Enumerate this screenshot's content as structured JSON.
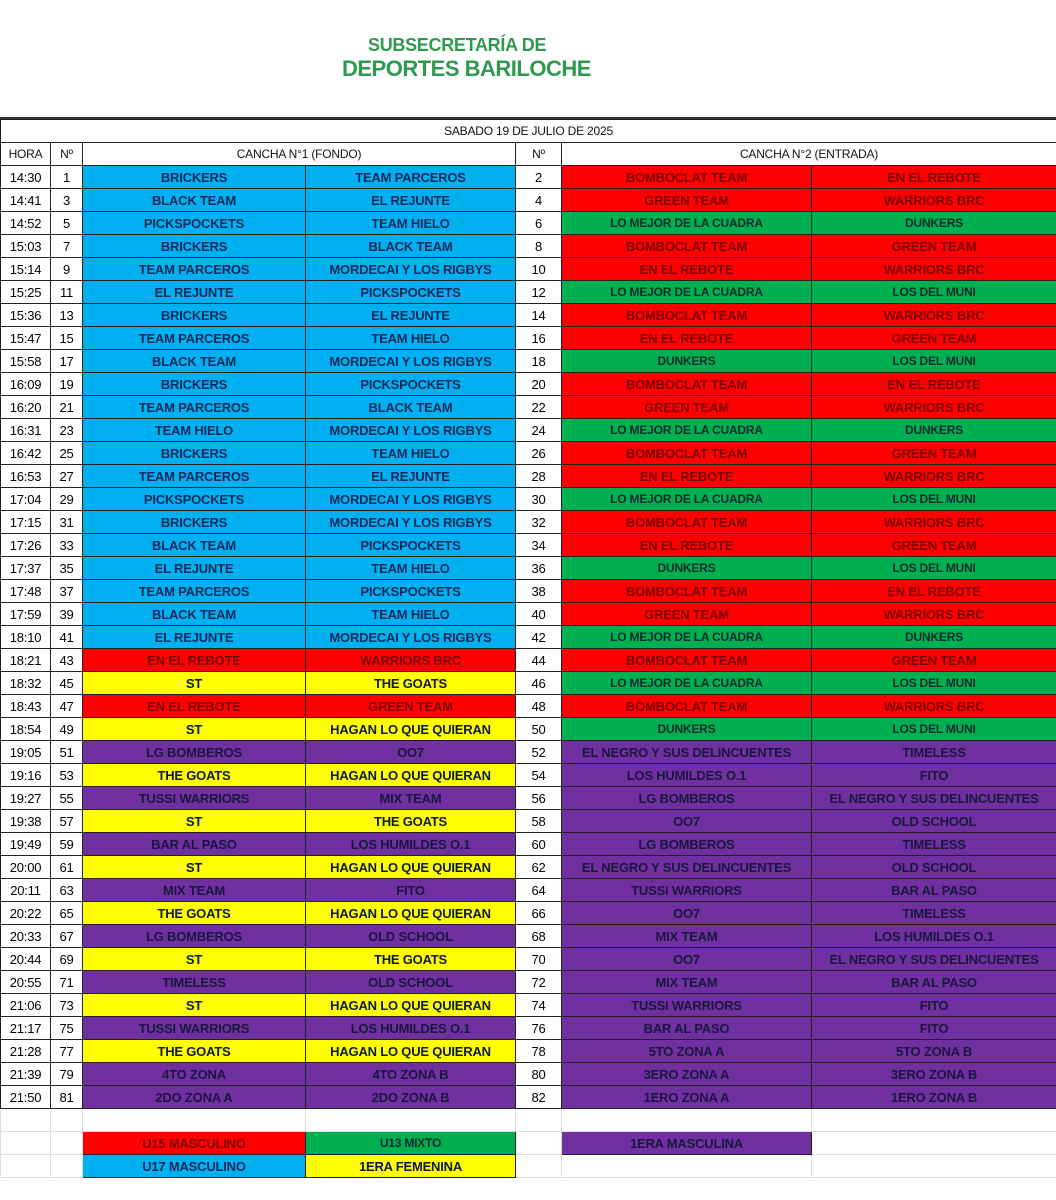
{
  "header": {
    "line1": "SUBSECRETARÍA DE",
    "line2": "DEPORTES BARILOCHE"
  },
  "date": "SABADO 19 DE JULIO DE 2025",
  "columns": {
    "hora": "HORA",
    "num": "Nº",
    "court1": "CANCHA N°1 (FONDO)",
    "num2": "Nº",
    "court2": "CANCHA N°2 (ENTRADA)"
  },
  "category_colors": {
    "U17": "#00b0f0",
    "U15": "#ff0000",
    "U13": "#00b050",
    "F1": "#ffff00",
    "M1": "#7030a0"
  },
  "rows": [
    [
      "14:30",
      "1",
      "BRICKERS",
      "TEAM PARCEROS",
      "U17",
      "2",
      "BOMBOCLAT TEAM",
      "EN EL REBOTE",
      "U15"
    ],
    [
      "14:41",
      "3",
      "BLACK TEAM",
      "EL REJUNTE",
      "U17",
      "4",
      "GREEN TEAM",
      "WARRIORS BRC",
      "U15"
    ],
    [
      "14:52",
      "5",
      "PICKSPOCKETS",
      "TEAM HIELO",
      "U17",
      "6",
      "LO MEJOR DE LA CUADRA",
      "DUNKERS",
      "U13"
    ],
    [
      "15:03",
      "7",
      "BRICKERS",
      "BLACK TEAM",
      "U17",
      "8",
      "BOMBOCLAT TEAM",
      "GREEN TEAM",
      "U15"
    ],
    [
      "15:14",
      "9",
      "TEAM PARCEROS",
      "MORDECAI Y LOS RIGBYS",
      "U17",
      "10",
      "EN EL REBOTE",
      "WARRIORS BRC",
      "U15"
    ],
    [
      "15:25",
      "11",
      "EL REJUNTE",
      "PICKSPOCKETS",
      "U17",
      "12",
      "LO MEJOR DE LA CUADRA",
      "LOS DEL MUNI",
      "U13"
    ],
    [
      "15:36",
      "13",
      "BRICKERS",
      "EL REJUNTE",
      "U17",
      "14",
      "BOMBOCLAT TEAM",
      "WARRIORS BRC",
      "U15"
    ],
    [
      "15:47",
      "15",
      "TEAM PARCEROS",
      "TEAM HIELO",
      "U17",
      "16",
      "EN EL REBOTE",
      "GREEN TEAM",
      "U15"
    ],
    [
      "15:58",
      "17",
      "BLACK TEAM",
      "MORDECAI Y LOS RIGBYS",
      "U17",
      "18",
      "DUNKERS",
      "LOS DEL MUNI",
      "U13"
    ],
    [
      "16:09",
      "19",
      "BRICKERS",
      "PICKSPOCKETS",
      "U17",
      "20",
      "BOMBOCLAT TEAM",
      "EN EL REBOTE",
      "U15"
    ],
    [
      "16:20",
      "21",
      "TEAM PARCEROS",
      "BLACK TEAM",
      "U17",
      "22",
      "GREEN TEAM",
      "WARRIORS BRC",
      "U15"
    ],
    [
      "16:31",
      "23",
      "TEAM HIELO",
      "MORDECAI Y LOS RIGBYS",
      "U17",
      "24",
      "LO MEJOR DE LA CUADRA",
      "DUNKERS",
      "U13"
    ],
    [
      "16:42",
      "25",
      "BRICKERS",
      "TEAM HIELO",
      "U17",
      "26",
      "BOMBOCLAT TEAM",
      "GREEN TEAM",
      "U15"
    ],
    [
      "16:53",
      "27",
      "TEAM PARCEROS",
      "EL REJUNTE",
      "U17",
      "28",
      "EN EL REBOTE",
      "WARRIORS BRC",
      "U15"
    ],
    [
      "17:04",
      "29",
      "PICKSPOCKETS",
      "MORDECAI Y LOS RIGBYS",
      "U17",
      "30",
      "LO MEJOR DE LA CUADRA",
      "LOS DEL MUNI",
      "U13"
    ],
    [
      "17:15",
      "31",
      "BRICKERS",
      "MORDECAI Y LOS RIGBYS",
      "U17",
      "32",
      "BOMBOCLAT TEAM",
      "WARRIORS BRC",
      "U15"
    ],
    [
      "17:26",
      "33",
      "BLACK TEAM",
      "PICKSPOCKETS",
      "U17",
      "34",
      "EN EL REBOTE",
      "GREEN TEAM",
      "U15"
    ],
    [
      "17:37",
      "35",
      "EL REJUNTE",
      "TEAM HIELO",
      "U17",
      "36",
      "DUNKERS",
      "LOS DEL MUNI",
      "U13"
    ],
    [
      "17:48",
      "37",
      "TEAM PARCEROS",
      "PICKSPOCKETS",
      "U17",
      "38",
      "BOMBOCLAT TEAM",
      "EN EL REBOTE",
      "U15"
    ],
    [
      "17:59",
      "39",
      "BLACK TEAM",
      "TEAM HIELO",
      "U17",
      "40",
      "GREEN TEAM",
      "WARRIORS BRC",
      "U15"
    ],
    [
      "18:10",
      "41",
      "EL REJUNTE",
      "MORDECAI Y LOS RIGBYS",
      "U17",
      "42",
      "LO MEJOR DE LA CUADRA",
      "DUNKERS",
      "U13"
    ],
    [
      "18:21",
      "43",
      "EN EL REBOTE",
      "WARRIORS BRC",
      "U15",
      "44",
      "BOMBOCLAT TEAM",
      "GREEN TEAM",
      "U15"
    ],
    [
      "18:32",
      "45",
      "ST",
      "THE GOATS",
      "F1",
      "46",
      "LO MEJOR DE LA CUADRA",
      "LOS DEL MUNI",
      "U13"
    ],
    [
      "18:43",
      "47",
      "EN EL REBOTE",
      "GREEN TEAM",
      "U15",
      "48",
      "BOMBOCLAT TEAM",
      "WARRIORS BRC",
      "U15"
    ],
    [
      "18:54",
      "49",
      "ST",
      "HAGAN LO QUE QUIERAN",
      "F1",
      "50",
      "DUNKERS",
      "LOS DEL MUNI",
      "U13"
    ],
    [
      "19:05",
      "51",
      "LG BOMBEROS",
      "OO7",
      "M1",
      "52",
      "EL NEGRO Y SUS DELINCUENTES",
      "TIMELESS",
      "M1"
    ],
    [
      "19:16",
      "53",
      "THE GOATS",
      "HAGAN LO QUE QUIERAN",
      "F1",
      "54",
      "LOS HUMILDES O.1",
      "FITO",
      "M1"
    ],
    [
      "19:27",
      "55",
      "TUSSI WARRIORS",
      "MIX TEAM",
      "M1",
      "56",
      "LG BOMBEROS",
      "EL NEGRO Y SUS DELINCUENTES",
      "M1"
    ],
    [
      "19:38",
      "57",
      "ST",
      "THE GOATS",
      "F1",
      "58",
      "OO7",
      "OLD SCHOOL",
      "M1"
    ],
    [
      "19:49",
      "59",
      "BAR AL PASO",
      "LOS HUMILDES O.1",
      "M1",
      "60",
      "LG BOMBEROS",
      "TIMELESS",
      "M1"
    ],
    [
      "20:00",
      "61",
      "ST",
      "HAGAN LO QUE QUIERAN",
      "F1",
      "62",
      "EL NEGRO Y SUS DELINCUENTES",
      "OLD SCHOOL",
      "M1"
    ],
    [
      "20:11",
      "63",
      "MIX TEAM",
      "FITO",
      "M1",
      "64",
      "TUSSI WARRIORS",
      "BAR AL PASO",
      "M1"
    ],
    [
      "20:22",
      "65",
      "THE GOATS",
      "HAGAN LO QUE QUIERAN",
      "F1",
      "66",
      "OO7",
      "TIMELESS",
      "M1"
    ],
    [
      "20:33",
      "67",
      "LG BOMBEROS",
      "OLD SCHOOL",
      "M1",
      "68",
      "MIX TEAM",
      "LOS HUMILDES O.1",
      "M1"
    ],
    [
      "20:44",
      "69",
      "ST",
      "THE GOATS",
      "F1",
      "70",
      "OO7",
      "EL NEGRO Y SUS DELINCUENTES",
      "M1"
    ],
    [
      "20:55",
      "71",
      "TIMELESS",
      "OLD SCHOOL",
      "M1",
      "72",
      "MIX TEAM",
      "BAR AL PASO",
      "M1"
    ],
    [
      "21:06",
      "73",
      "ST",
      "HAGAN LO QUE QUIERAN",
      "F1",
      "74",
      "TUSSI WARRIORS",
      "FITO",
      "M1"
    ],
    [
      "21:17",
      "75",
      "TUSSI WARRIORS",
      "LOS HUMILDES O.1",
      "M1",
      "76",
      "BAR AL PASO",
      "FITO",
      "M1"
    ],
    [
      "21:28",
      "77",
      "THE GOATS",
      "HAGAN LO QUE QUIERAN",
      "F1",
      "78",
      "5TO ZONA A",
      "5TO ZONA B",
      "M1"
    ],
    [
      "21:39",
      "79",
      "4TO ZONA",
      "4TO ZONA B",
      "M1",
      "80",
      "3ERO ZONA A",
      "3ERO ZONA B",
      "M1"
    ],
    [
      "21:50",
      "81",
      "2DO ZONA A",
      "2DO ZONA B",
      "M1",
      "82",
      "1ERO ZONA A",
      "1ERO ZONA B",
      "M1"
    ]
  ],
  "legend": {
    "U15": "U15 MASCULINO",
    "U13": "U13 MIXTO",
    "M1": "1ERA MASCULINA",
    "U17": "U17 MASCULINO",
    "F1": "1ERA FEMENINA"
  }
}
